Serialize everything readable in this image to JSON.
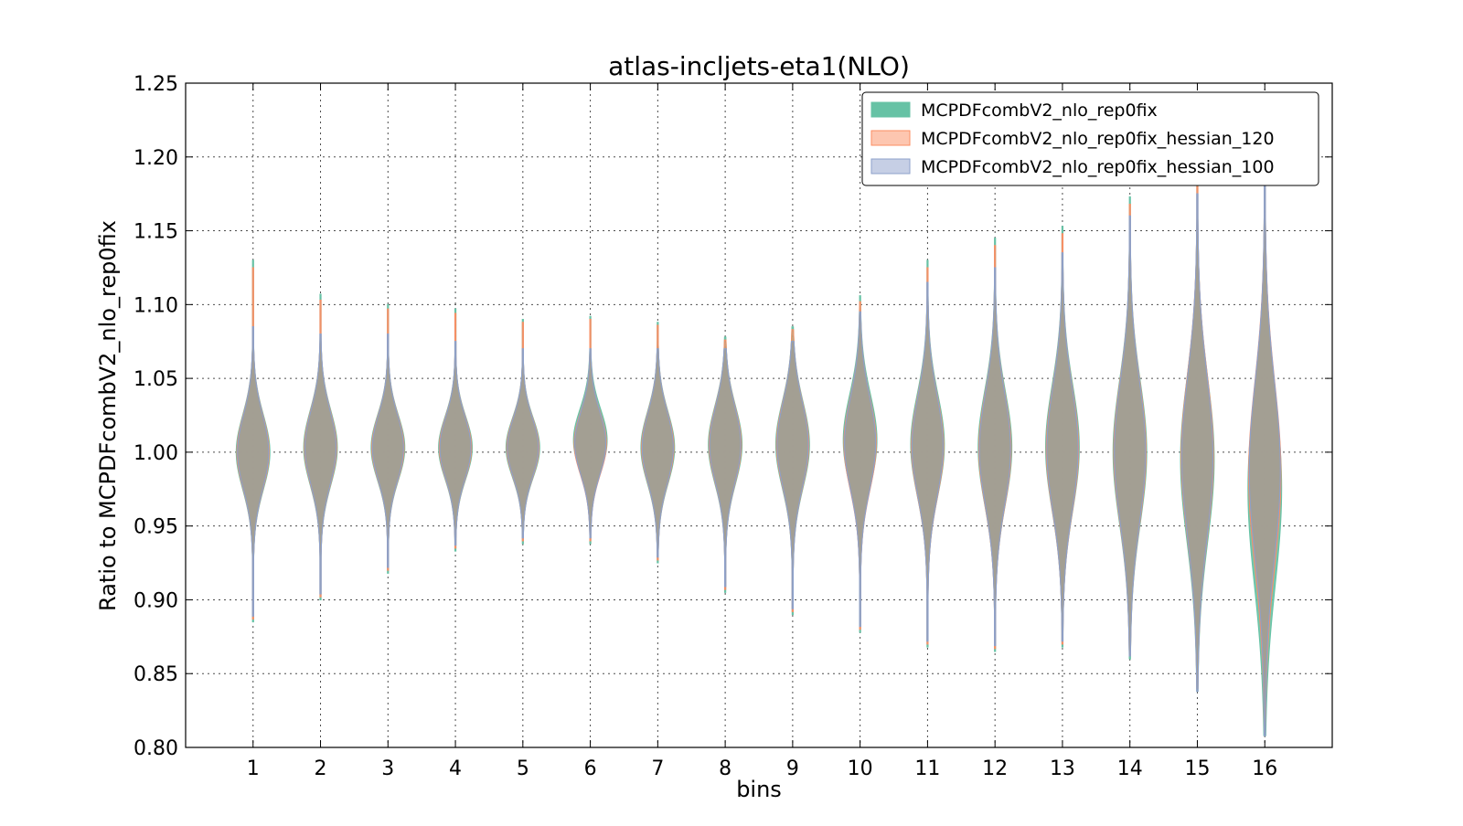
{
  "chart_data": {
    "type": "violin",
    "title": "atlas-incljets-eta1(NLO)",
    "xlabel": "bins",
    "ylabel": "Ratio to MCPDFcombV2_nlo_rep0fix",
    "ylim": [
      0.8,
      1.25
    ],
    "xlim": [
      0,
      17
    ],
    "yticks": [
      "0.80",
      "0.85",
      "0.90",
      "0.95",
      "1.00",
      "1.05",
      "1.10",
      "1.15",
      "1.20",
      "1.25"
    ],
    "yticks_values": [
      0.8,
      0.85,
      0.9,
      0.95,
      1.0,
      1.05,
      1.1,
      1.15,
      1.2,
      1.25
    ],
    "categories": [
      "1",
      "2",
      "3",
      "4",
      "5",
      "6",
      "7",
      "8",
      "9",
      "10",
      "11",
      "12",
      "13",
      "14",
      "15",
      "16"
    ],
    "grid": true,
    "legend_position": "top-right",
    "series": [
      {
        "name": "MCPDFcombV2_nlo_rep0fix",
        "color": "#66c2a5",
        "min": [
          0.885,
          0.9,
          0.918,
          0.933,
          0.938,
          0.938,
          0.925,
          0.905,
          0.89,
          0.878,
          0.868,
          0.865,
          0.868,
          0.86,
          0.838,
          0.808
        ],
        "max": [
          1.13,
          1.107,
          1.1,
          1.097,
          1.09,
          1.092,
          1.088,
          1.078,
          1.085,
          1.106,
          1.13,
          1.145,
          1.153,
          1.173,
          1.185,
          1.24
        ],
        "center": [
          1.0,
          1.003,
          1.003,
          1.003,
          1.003,
          1.008,
          1.003,
          1.005,
          1.005,
          1.008,
          1.005,
          1.003,
          1.003,
          1.0,
          0.995,
          0.975
        ],
        "halfwidth": [
          0.25,
          0.25,
          0.25,
          0.25,
          0.25,
          0.25,
          0.25,
          0.25,
          0.25,
          0.25,
          0.25,
          0.25,
          0.25,
          0.25,
          0.25,
          0.25
        ],
        "spread": [
          0.025,
          0.025,
          0.022,
          0.021,
          0.02,
          0.021,
          0.024,
          0.026,
          0.029,
          0.031,
          0.034,
          0.038,
          0.042,
          0.048,
          0.055,
          0.065
        ]
      },
      {
        "name": "MCPDFcombV2_nlo_rep0fix_hessian_120",
        "color": "#fc8d62",
        "min": [
          0.887,
          0.902,
          0.92,
          0.935,
          0.94,
          0.94,
          0.927,
          0.907,
          0.892,
          0.88,
          0.87,
          0.867,
          0.87,
          0.862,
          0.84,
          0.81
        ],
        "max": [
          1.125,
          1.103,
          1.097,
          1.094,
          1.088,
          1.09,
          1.086,
          1.076,
          1.083,
          1.102,
          1.125,
          1.14,
          1.148,
          1.168,
          1.18,
          1.235
        ],
        "center": [
          1.0,
          1.003,
          1.003,
          1.003,
          1.003,
          1.006,
          1.003,
          1.005,
          1.005,
          1.006,
          1.004,
          1.002,
          1.002,
          1.0,
          0.997,
          0.985
        ],
        "halfwidth": [
          0.24,
          0.24,
          0.24,
          0.24,
          0.24,
          0.24,
          0.24,
          0.24,
          0.24,
          0.24,
          0.24,
          0.24,
          0.24,
          0.24,
          0.24,
          0.24
        ],
        "spread": [
          0.025,
          0.025,
          0.022,
          0.021,
          0.02,
          0.021,
          0.024,
          0.026,
          0.029,
          0.031,
          0.034,
          0.038,
          0.042,
          0.048,
          0.055,
          0.062
        ]
      },
      {
        "name": "MCPDFcombV2_nlo_rep0fix_hessian_100",
        "color": "#8da0cb",
        "min": [
          0.889,
          0.904,
          0.922,
          0.937,
          0.942,
          0.942,
          0.929,
          0.909,
          0.894,
          0.882,
          0.872,
          0.869,
          0.872,
          0.862,
          0.838,
          0.808
        ],
        "max": [
          1.085,
          1.08,
          1.08,
          1.075,
          1.07,
          1.07,
          1.07,
          1.07,
          1.075,
          1.095,
          1.115,
          1.125,
          1.135,
          1.16,
          1.175,
          1.2
        ],
        "center": [
          1.0,
          1.003,
          1.003,
          1.003,
          1.003,
          1.006,
          1.003,
          1.005,
          1.005,
          1.006,
          1.004,
          1.002,
          1.002,
          1.0,
          0.997,
          0.988
        ],
        "halfwidth": [
          0.23,
          0.23,
          0.23,
          0.23,
          0.23,
          0.23,
          0.23,
          0.23,
          0.23,
          0.23,
          0.23,
          0.23,
          0.23,
          0.23,
          0.23,
          0.23
        ],
        "spread": [
          0.025,
          0.025,
          0.022,
          0.021,
          0.02,
          0.021,
          0.024,
          0.026,
          0.029,
          0.031,
          0.034,
          0.038,
          0.042,
          0.048,
          0.055,
          0.06
        ]
      }
    ],
    "blend_color": "#a39d8f"
  }
}
